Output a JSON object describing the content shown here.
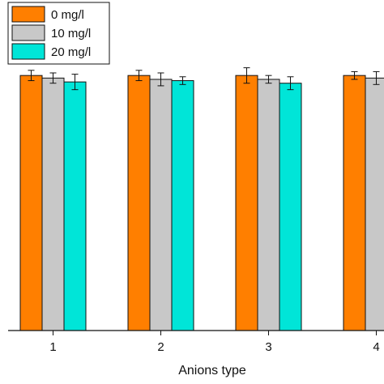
{
  "chart_data": {
    "type": "bar",
    "title": "",
    "xlabel": "Anions type",
    "ylabel": "",
    "categories": [
      "1",
      "2",
      "3",
      "4"
    ],
    "ylim": [
      0,
      1.0
    ],
    "series": [
      {
        "name": "0 mg/l",
        "color": "#FF7F00",
        "values": [
          0.99,
          0.99,
          0.99,
          0.99
        ],
        "errors": [
          0.02,
          0.02,
          0.03,
          0.015
        ]
      },
      {
        "name": "10 mg/l",
        "color": "#C8C8C8",
        "values": [
          0.98,
          0.975,
          0.975,
          0.98
        ],
        "errors": [
          0.02,
          0.025,
          0.015,
          0.025
        ]
      },
      {
        "name": "20 mg/l",
        "color": "#00E5D8",
        "values": [
          0.965,
          0.97,
          0.96,
          null
        ],
        "errors": [
          0.03,
          0.015,
          0.025,
          null
        ]
      }
    ],
    "grid": false,
    "legend_position": "top-left"
  }
}
